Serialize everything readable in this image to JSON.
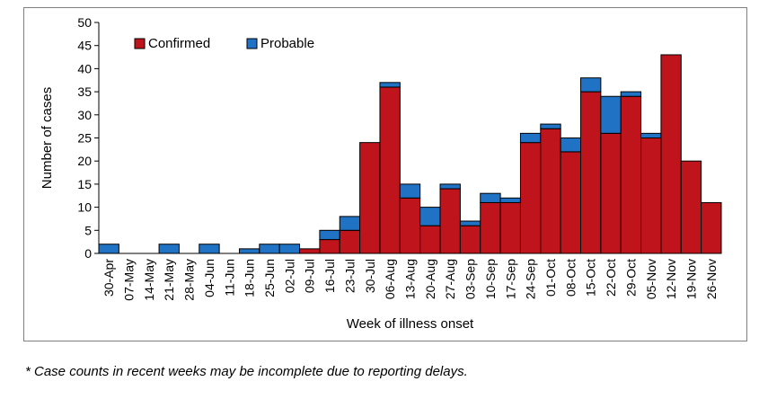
{
  "chart_data": {
    "type": "bar",
    "stacked": true,
    "xlabel": "Week of illness onset",
    "ylabel": "Number of cases",
    "ylim": [
      0,
      50
    ],
    "yticks": [
      0,
      5,
      10,
      15,
      20,
      25,
      30,
      35,
      40,
      45,
      50
    ],
    "grid": false,
    "legend_position": "top-left",
    "categories": [
      "30-Apr",
      "07-May",
      "14-May",
      "21-May",
      "28-May",
      "04-Jun",
      "11-Jun",
      "18-Jun",
      "25-Jun",
      "02-Jul",
      "09-Jul",
      "16-Jul",
      "23-Jul",
      "30-Jul",
      "06-Aug",
      "13-Aug",
      "20-Aug",
      "27-Aug",
      "03-Sep",
      "10-Sep",
      "17-Sep",
      "24-Sep",
      "01-Oct",
      "08-Oct",
      "15-Oct",
      "22-Oct",
      "29-Oct",
      "05-Nov",
      "12-Nov",
      "19-Nov",
      "26-Nov"
    ],
    "series": [
      {
        "name": "Confirmed",
        "color": "#c0141c",
        "values": [
          0,
          0,
          0,
          0,
          0,
          0,
          0,
          0,
          0,
          0,
          1,
          3,
          5,
          24,
          36,
          12,
          6,
          14,
          6,
          11,
          11,
          24,
          27,
          22,
          35,
          26,
          34,
          25,
          43,
          20,
          11
        ]
      },
      {
        "name": "Probable",
        "color": "#1f72c4",
        "values": [
          2,
          0,
          0,
          2,
          0,
          2,
          0,
          1,
          2,
          2,
          0,
          2,
          3,
          0,
          1,
          3,
          4,
          1,
          1,
          2,
          1,
          2,
          1,
          3,
          3,
          8,
          1,
          1,
          0,
          0,
          0
        ]
      }
    ]
  },
  "footnote": "* Case counts in recent weeks may be incomplete due to reporting delays."
}
